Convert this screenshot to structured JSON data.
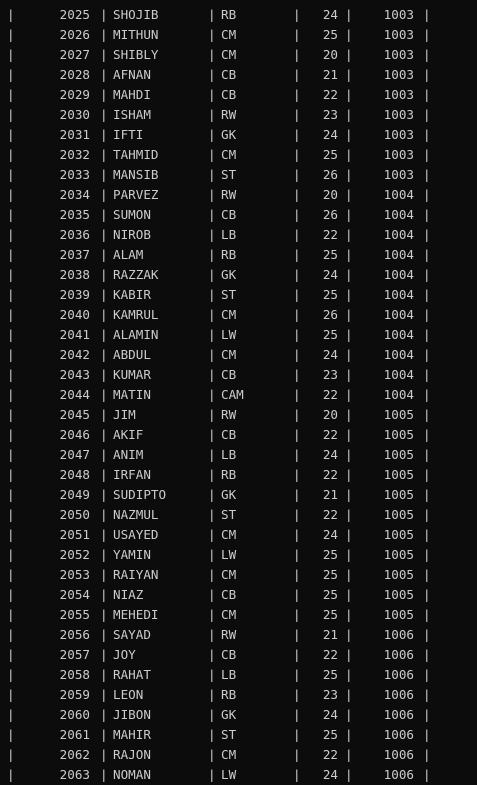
{
  "colors": {
    "background": "#0c0c0c",
    "text": "#cccccc"
  },
  "separator": "|",
  "rows": [
    {
      "id": "2025",
      "name": "SHOJIB",
      "pos": "RB",
      "age": "24",
      "team": "1003"
    },
    {
      "id": "2026",
      "name": "MITHUN",
      "pos": "CM",
      "age": "25",
      "team": "1003"
    },
    {
      "id": "2027",
      "name": "SHIBLY",
      "pos": "CM",
      "age": "20",
      "team": "1003"
    },
    {
      "id": "2028",
      "name": "AFNAN",
      "pos": "CB",
      "age": "21",
      "team": "1003"
    },
    {
      "id": "2029",
      "name": "MAHDI",
      "pos": "CB",
      "age": "22",
      "team": "1003"
    },
    {
      "id": "2030",
      "name": "ISHAM",
      "pos": "RW",
      "age": "23",
      "team": "1003"
    },
    {
      "id": "2031",
      "name": "IFTI",
      "pos": "GK",
      "age": "24",
      "team": "1003"
    },
    {
      "id": "2032",
      "name": "TAHMID",
      "pos": "CM",
      "age": "25",
      "team": "1003"
    },
    {
      "id": "2033",
      "name": "MANSIB",
      "pos": "ST",
      "age": "26",
      "team": "1003"
    },
    {
      "id": "2034",
      "name": "PARVEZ",
      "pos": "RW",
      "age": "20",
      "team": "1004"
    },
    {
      "id": "2035",
      "name": "SUMON",
      "pos": "CB",
      "age": "26",
      "team": "1004"
    },
    {
      "id": "2036",
      "name": "NIROB",
      "pos": "LB",
      "age": "22",
      "team": "1004"
    },
    {
      "id": "2037",
      "name": "ALAM",
      "pos": "RB",
      "age": "25",
      "team": "1004"
    },
    {
      "id": "2038",
      "name": "RAZZAK",
      "pos": "GK",
      "age": "24",
      "team": "1004"
    },
    {
      "id": "2039",
      "name": "KABIR",
      "pos": "ST",
      "age": "25",
      "team": "1004"
    },
    {
      "id": "2040",
      "name": "KAMRUL",
      "pos": "CM",
      "age": "26",
      "team": "1004"
    },
    {
      "id": "2041",
      "name": "ALAMIN",
      "pos": "LW",
      "age": "25",
      "team": "1004"
    },
    {
      "id": "2042",
      "name": "ABDUL",
      "pos": "CM",
      "age": "24",
      "team": "1004"
    },
    {
      "id": "2043",
      "name": "KUMAR",
      "pos": "CB",
      "age": "23",
      "team": "1004"
    },
    {
      "id": "2044",
      "name": "MATIN",
      "pos": "CAM",
      "age": "22",
      "team": "1004"
    },
    {
      "id": "2045",
      "name": "JIM",
      "pos": "RW",
      "age": "20",
      "team": "1005"
    },
    {
      "id": "2046",
      "name": "AKIF",
      "pos": "CB",
      "age": "22",
      "team": "1005"
    },
    {
      "id": "2047",
      "name": "ANIM",
      "pos": "LB",
      "age": "24",
      "team": "1005"
    },
    {
      "id": "2048",
      "name": "IRFAN",
      "pos": "RB",
      "age": "22",
      "team": "1005"
    },
    {
      "id": "2049",
      "name": "SUDIPTO",
      "pos": "GK",
      "age": "21",
      "team": "1005"
    },
    {
      "id": "2050",
      "name": "NAZMUL",
      "pos": "ST",
      "age": "22",
      "team": "1005"
    },
    {
      "id": "2051",
      "name": "USAYED",
      "pos": "CM",
      "age": "24",
      "team": "1005"
    },
    {
      "id": "2052",
      "name": "YAMIN",
      "pos": "LW",
      "age": "25",
      "team": "1005"
    },
    {
      "id": "2053",
      "name": "RAIYAN",
      "pos": "CM",
      "age": "25",
      "team": "1005"
    },
    {
      "id": "2054",
      "name": "NIAZ",
      "pos": "CB",
      "age": "25",
      "team": "1005"
    },
    {
      "id": "2055",
      "name": "MEHEDI",
      "pos": "CM",
      "age": "25",
      "team": "1005"
    },
    {
      "id": "2056",
      "name": "SAYAD",
      "pos": "RW",
      "age": "21",
      "team": "1006"
    },
    {
      "id": "2057",
      "name": "JOY",
      "pos": "CB",
      "age": "22",
      "team": "1006"
    },
    {
      "id": "2058",
      "name": "RAHAT",
      "pos": "LB",
      "age": "25",
      "team": "1006"
    },
    {
      "id": "2059",
      "name": "LEON",
      "pos": "RB",
      "age": "23",
      "team": "1006"
    },
    {
      "id": "2060",
      "name": "JIBON",
      "pos": "GK",
      "age": "24",
      "team": "1006"
    },
    {
      "id": "2061",
      "name": "MAHIR",
      "pos": "ST",
      "age": "25",
      "team": "1006"
    },
    {
      "id": "2062",
      "name": "RAJON",
      "pos": "CM",
      "age": "22",
      "team": "1006"
    },
    {
      "id": "2063",
      "name": "NOMAN",
      "pos": "LW",
      "age": "24",
      "team": "1006"
    }
  ]
}
